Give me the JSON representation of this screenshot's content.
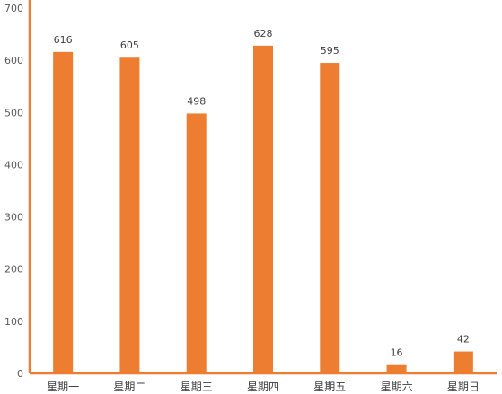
{
  "chart_data": {
    "type": "bar",
    "title": "",
    "xlabel": "",
    "ylabel": "",
    "categories": [
      "星期一",
      "星期二",
      "星期三",
      "星期四",
      "星期五",
      "星期六",
      "星期日"
    ],
    "series": [
      {
        "values": [
          616,
          605,
          498,
          628,
          595,
          16,
          42
        ]
      }
    ],
    "ylim": [
      0,
      700
    ],
    "yticks": [
      0,
      100,
      200,
      300,
      400,
      500,
      600,
      700
    ],
    "grid": false,
    "legend": "none",
    "data_labels": true,
    "colors": {
      "bar": "#ED7D31",
      "axis": "#ED7D31"
    }
  }
}
